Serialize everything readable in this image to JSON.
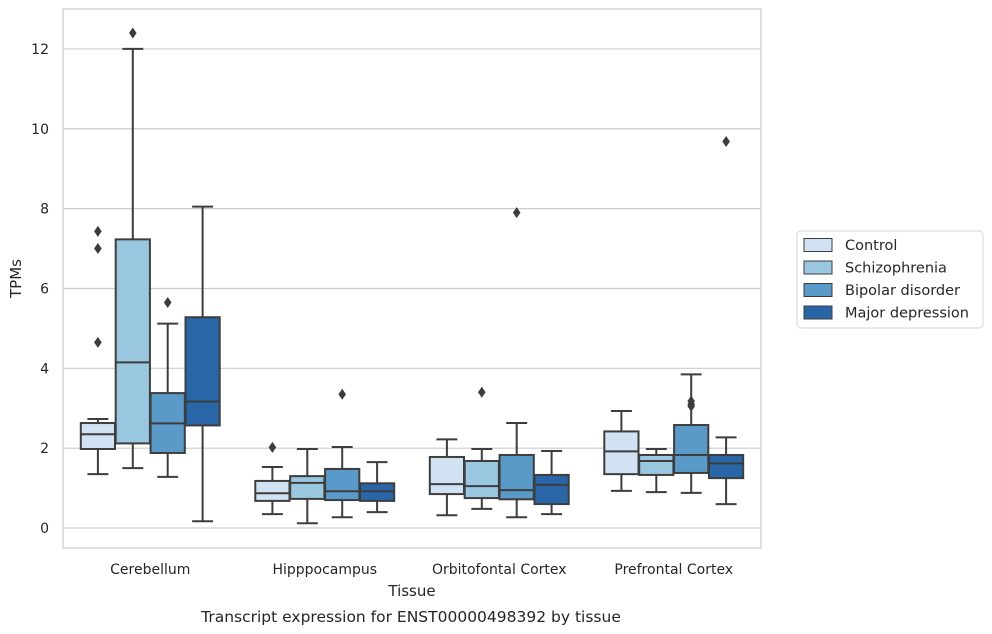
{
  "chart_data": {
    "type": "box",
    "xlabel": "Tissue",
    "ylabel": "TPMs",
    "caption": "Transcript expression for ENST00000498392 by tissue",
    "ylim": [
      -0.5,
      13
    ],
    "yticks": [
      0,
      2,
      4,
      6,
      8,
      10,
      12
    ],
    "grid": "horizontal",
    "legend_position": "outside-right",
    "categories": [
      "Cerebellum",
      "Hipppocampus",
      "Orbitofontal Cortex",
      "Prefrontal Cortex"
    ],
    "series": [
      {
        "name": "Control",
        "color": "#d1e2f2",
        "boxes": [
          {
            "whislo": 1.35,
            "q1": 1.98,
            "med": 2.35,
            "q3": 2.63,
            "whishi": 2.73,
            "fliers": [
              4.65,
              7.0,
              7.43
            ]
          },
          {
            "whislo": 0.35,
            "q1": 0.68,
            "med": 0.87,
            "q3": 1.18,
            "whishi": 1.53,
            "fliers": [
              2.02
            ]
          },
          {
            "whislo": 0.32,
            "q1": 0.85,
            "med": 1.1,
            "q3": 1.78,
            "whishi": 2.22,
            "fliers": []
          },
          {
            "whislo": 0.93,
            "q1": 1.35,
            "med": 1.92,
            "q3": 2.42,
            "whishi": 2.93,
            "fliers": []
          }
        ]
      },
      {
        "name": "Schizophrenia",
        "color": "#9ac7e0",
        "boxes": [
          {
            "whislo": 1.5,
            "q1": 2.12,
            "med": 4.15,
            "q3": 7.23,
            "whishi": 12.0,
            "fliers": [
              12.4
            ]
          },
          {
            "whislo": 0.12,
            "q1": 0.73,
            "med": 1.13,
            "q3": 1.3,
            "whishi": 1.98,
            "fliers": []
          },
          {
            "whislo": 0.48,
            "q1": 0.75,
            "med": 1.05,
            "q3": 1.68,
            "whishi": 1.98,
            "fliers": [
              3.4
            ]
          },
          {
            "whislo": 0.9,
            "q1": 1.33,
            "med": 1.68,
            "q3": 1.83,
            "whishi": 1.98,
            "fliers": []
          }
        ]
      },
      {
        "name": "Bipolar disorder",
        "color": "#5a9ac8",
        "boxes": [
          {
            "whislo": 1.28,
            "q1": 1.88,
            "med": 2.62,
            "q3": 3.38,
            "whishi": 5.12,
            "fliers": [
              5.65
            ]
          },
          {
            "whislo": 0.27,
            "q1": 0.7,
            "med": 0.92,
            "q3": 1.48,
            "whishi": 2.03,
            "fliers": [
              3.35
            ]
          },
          {
            "whislo": 0.27,
            "q1": 0.72,
            "med": 0.95,
            "q3": 1.83,
            "whishi": 2.63,
            "fliers": [
              7.9
            ]
          },
          {
            "whislo": 0.88,
            "q1": 1.38,
            "med": 1.83,
            "q3": 2.58,
            "whishi": 3.85,
            "fliers": [
              3.05,
              3.1,
              3.18
            ]
          }
        ]
      },
      {
        "name": "Major depression",
        "color": "#2866a8",
        "boxes": [
          {
            "whislo": 0.17,
            "q1": 2.57,
            "med": 3.17,
            "q3": 5.28,
            "whishi": 8.05,
            "fliers": []
          },
          {
            "whislo": 0.4,
            "q1": 0.68,
            "med": 0.92,
            "q3": 1.12,
            "whishi": 1.65,
            "fliers": []
          },
          {
            "whislo": 0.35,
            "q1": 0.6,
            "med": 1.08,
            "q3": 1.33,
            "whishi": 1.93,
            "fliers": []
          },
          {
            "whislo": 0.6,
            "q1": 1.25,
            "med": 1.62,
            "q3": 1.83,
            "whishi": 2.27,
            "fliers": [
              9.68
            ]
          }
        ]
      }
    ]
  }
}
